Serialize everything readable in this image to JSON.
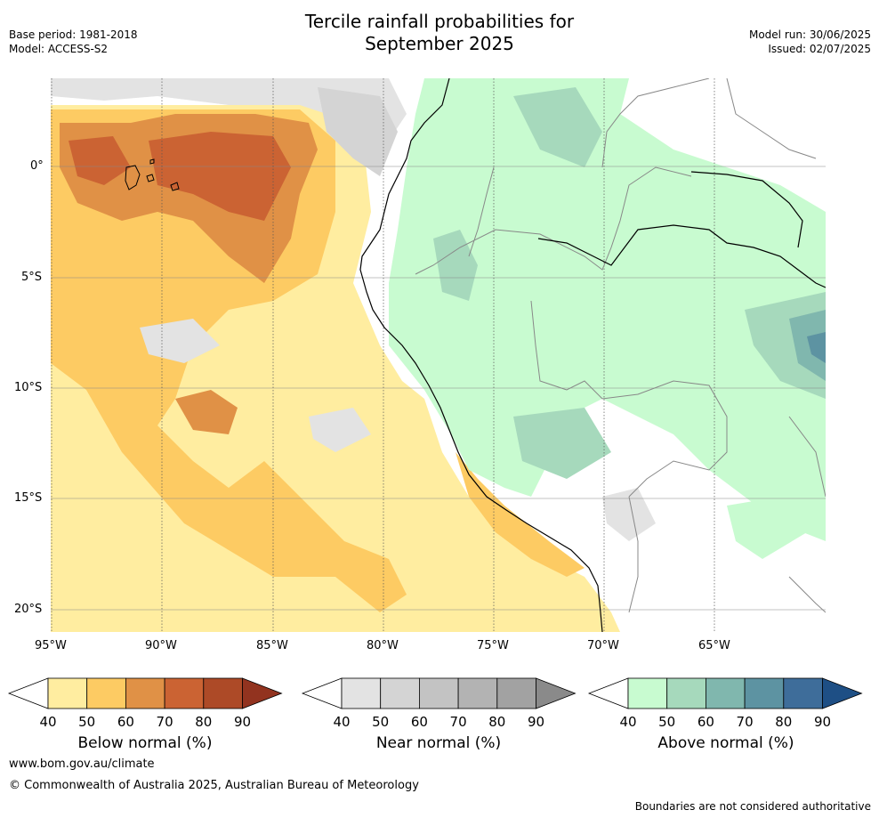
{
  "title_line1": "Tercile rainfall probabilities for",
  "title_line2": "September 2025",
  "base_period": "Base period: 1981-2018",
  "model": "Model: ACCESS-S2",
  "model_run": "Model run: 30/06/2025",
  "issued": "Issued: 02/07/2025",
  "lat_labels": [
    "0°",
    "5°S",
    "10°S",
    "15°S",
    "20°S"
  ],
  "lon_labels": [
    "95°W",
    "90°W",
    "85°W",
    "80°W",
    "75°W",
    "70°W",
    "65°W"
  ],
  "colorbars": [
    {
      "title": "Below normal (%)",
      "ticks": [
        "40",
        "50",
        "60",
        "70",
        "80",
        "90"
      ],
      "colors": [
        "#ffeda0",
        "#fdcb63",
        "#e09146",
        "#cb6333",
        "#ad4a27",
        "#92331f"
      ]
    },
    {
      "title": "Near normal (%)",
      "ticks": [
        "40",
        "50",
        "60",
        "70",
        "80",
        "90"
      ],
      "colors": [
        "#e3e3e3",
        "#d4d4d4",
        "#c3c3c3",
        "#b3b3b3",
        "#a2a2a2",
        "#8a8a8a"
      ]
    },
    {
      "title": "Above normal (%)",
      "ticks": [
        "40",
        "50",
        "60",
        "70",
        "80",
        "90"
      ],
      "colors": [
        "#c8fbd0",
        "#a6d9bc",
        "#80b7ae",
        "#5d93a2",
        "#3e6d9a",
        "#1e4f85"
      ]
    }
  ],
  "footer_url": "www.bom.gov.au/climate",
  "footer_copyright": "© Commonwealth of Australia 2025, Australian Bureau of Meteorology",
  "footer_note": "Boundaries are not considered authoritative"
}
